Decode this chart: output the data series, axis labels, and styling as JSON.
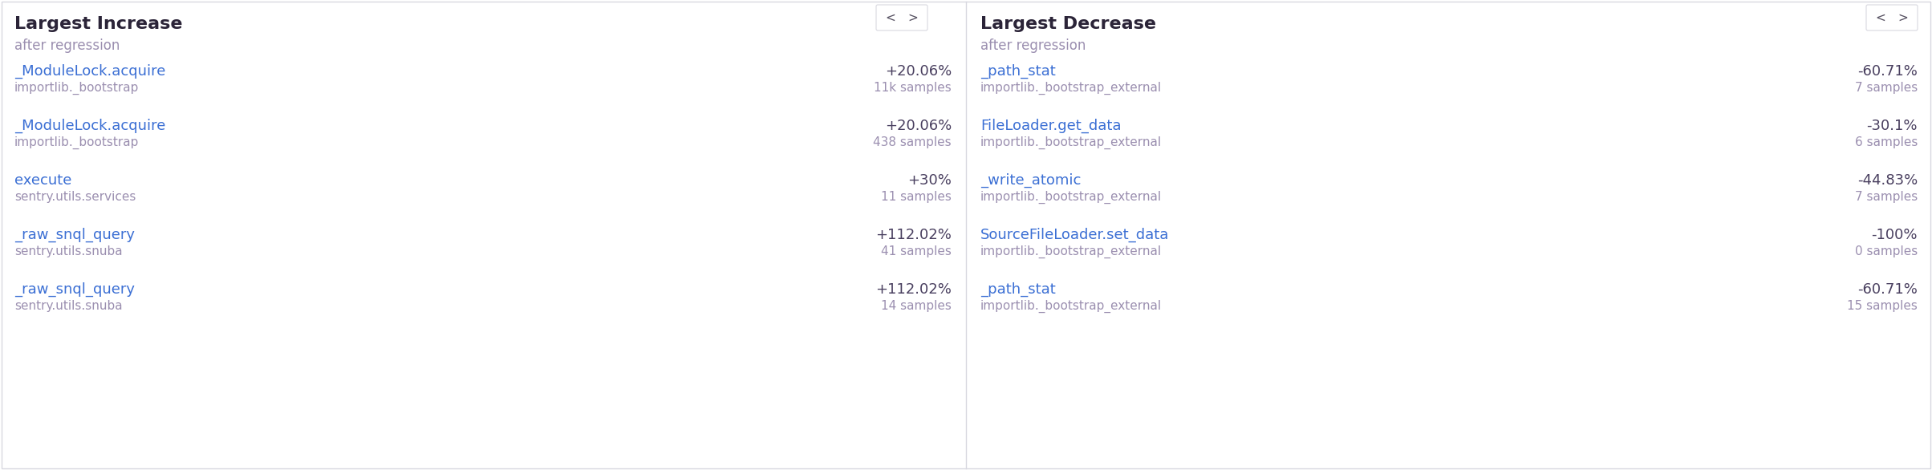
{
  "bg_color": "#ffffff",
  "border_color": "#d8d8e0",
  "title_color": "#2b2438",
  "subtitle_color": "#9b8fb0",
  "link_color": "#3b6fd4",
  "subtext_color": "#9b8fb0",
  "pct_color": "#4a4060",
  "nav_color": "#555060",
  "fig_width": 24.08,
  "fig_height": 5.86,
  "dpi": 100,
  "left_panel": {
    "title": "Largest Increase",
    "subtitle": "after regression",
    "rows": [
      {
        "func": "_ModuleLock.acquire",
        "module": "importlib._bootstrap",
        "pct": "+20.06%",
        "samples": "11k samples"
      },
      {
        "func": "_ModuleLock.acquire",
        "module": "importlib._bootstrap",
        "pct": "+20.06%",
        "samples": "438 samples"
      },
      {
        "func": "execute",
        "module": "sentry.utils.services",
        "pct": "+30%",
        "samples": "11 samples"
      },
      {
        "func": "_raw_snql_query",
        "module": "sentry.utils.snuba",
        "pct": "+112.02%",
        "samples": "41 samples"
      },
      {
        "func": "_raw_snql_query",
        "module": "sentry.utils.snuba",
        "pct": "+112.02%",
        "samples": "14 samples"
      }
    ]
  },
  "right_panel": {
    "title": "Largest Decrease",
    "subtitle": "after regression",
    "rows": [
      {
        "func": "_path_stat",
        "module": "importlib._bootstrap_external",
        "pct": "-60.71%",
        "samples": "7 samples"
      },
      {
        "func": "FileLoader.get_data",
        "module": "importlib._bootstrap_external",
        "pct": "-30.1%",
        "samples": "6 samples"
      },
      {
        "func": "_write_atomic",
        "module": "importlib._bootstrap_external",
        "pct": "-44.83%",
        "samples": "7 samples"
      },
      {
        "func": "SourceFileLoader.set_data",
        "module": "importlib._bootstrap_external",
        "pct": "-100%",
        "samples": "0 samples"
      },
      {
        "func": "_path_stat",
        "module": "importlib._bootstrap_external",
        "pct": "-60.71%",
        "samples": "15 samples"
      }
    ]
  }
}
